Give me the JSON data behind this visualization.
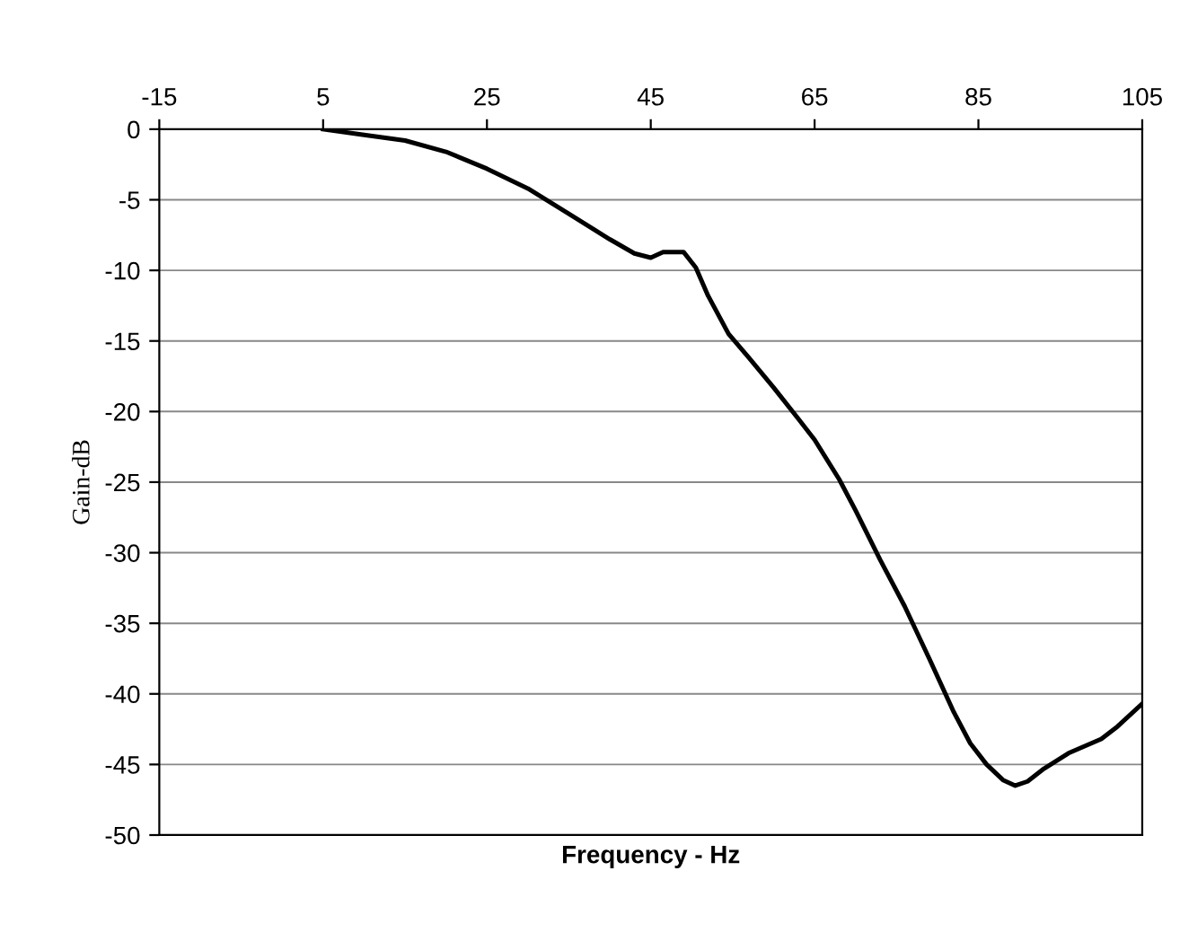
{
  "chart_data": {
    "type": "line",
    "xlabel": "Frequency - Hz",
    "ylabel": "Gain-dB",
    "xlim": [
      -15,
      105
    ],
    "xticks": [
      -15,
      5,
      25,
      45,
      65,
      85,
      105
    ],
    "ylim": [
      -50,
      0
    ],
    "yticks": [
      0,
      -5,
      -10,
      -15,
      -20,
      -25,
      -30,
      -35,
      -40,
      -45,
      -50
    ],
    "grid": "y",
    "legend": false,
    "marker": "none",
    "line_style": "solid",
    "series": [
      {
        "color": "#000000",
        "x": [
          5,
          10,
          15,
          20,
          25,
          30,
          35,
          40,
          43,
          45,
          46.5,
          49,
          50.5,
          52,
          54.5,
          57,
          60,
          63,
          65,
          68,
          70,
          73,
          76,
          79,
          82,
          84,
          86,
          88,
          89.5,
          91,
          93,
          96,
          100,
          102,
          105
        ],
        "values": [
          0,
          -0.4,
          -0.8,
          -1.6,
          -2.8,
          -4.2,
          -6.0,
          -7.8,
          -8.8,
          -9.1,
          -8.7,
          -8.7,
          -9.8,
          -11.8,
          -14.5,
          -16.2,
          -18.3,
          -20.5,
          -22,
          -24.8,
          -27,
          -30.5,
          -33.8,
          -37.5,
          -41.3,
          -43.5,
          -45,
          -46.1,
          -46.5,
          -46.2,
          -45.3,
          -44.2,
          -43.2,
          -42.3,
          -40.7
        ]
      }
    ]
  }
}
